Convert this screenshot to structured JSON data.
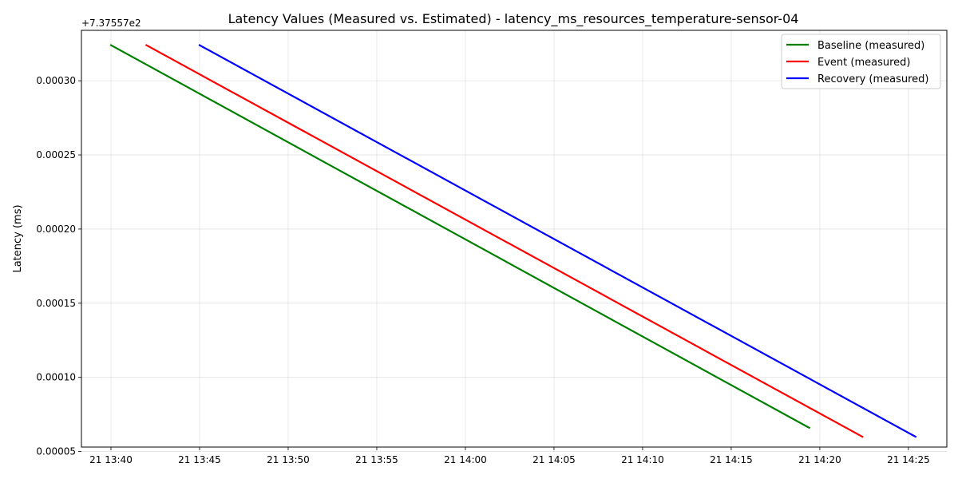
{
  "chart_data": {
    "type": "line",
    "title": "Latency Values (Measured vs. Estimated) - latency_ms_resources_temperature-sensor-04",
    "xlabel": "",
    "ylabel": "Latency (ms)",
    "y_offset_label": "+7.37557e2",
    "x_axis_type": "time",
    "xlim": [
      "21 13:38:20",
      "21 14:27:10"
    ],
    "ylim": [
      5.3e-05,
      0.000334
    ],
    "x_ticks": [
      "21 13:40",
      "21 13:45",
      "21 13:50",
      "21 13:55",
      "21 14:00",
      "21 14:05",
      "21 14:10",
      "21 14:15",
      "21 14:20",
      "21 14:25"
    ],
    "y_ticks": [
      "0.00005",
      "0.00010",
      "0.00015",
      "0.00020",
      "0.00025",
      "0.00030"
    ],
    "grid": true,
    "legend_position": "top-right",
    "series": [
      {
        "name": "Baseline (measured)",
        "color": "#008000",
        "x": [
          "21 13:40:00",
          "21 14:19:24"
        ],
        "y": [
          0.000324,
          6.6e-05
        ]
      },
      {
        "name": "Event (measured)",
        "color": "#ff0000",
        "x": [
          "21 13:42:00",
          "21 14:22:24"
        ],
        "y": [
          0.000324,
          6e-05
        ]
      },
      {
        "name": "Recovery (measured)",
        "color": "#0000ff",
        "x": [
          "21 13:45:00",
          "21 14:25:24"
        ],
        "y": [
          0.000324,
          6e-05
        ]
      }
    ]
  }
}
